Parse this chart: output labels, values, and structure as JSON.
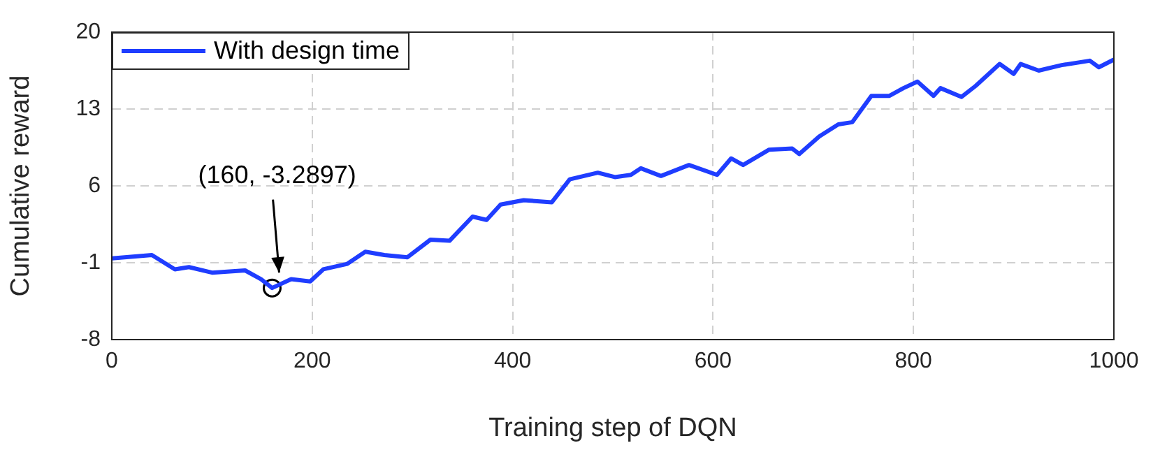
{
  "chart_data": {
    "type": "line",
    "xlabel": "Training step of DQN",
    "ylabel": "Cumulative reward",
    "x": [
      0,
      40,
      63,
      77,
      100,
      133,
      149,
      160,
      179,
      198,
      211,
      235,
      253,
      272,
      295,
      318,
      337,
      360,
      374,
      388,
      411,
      439,
      457,
      485,
      502,
      518,
      528,
      548,
      576,
      604,
      618,
      630,
      656,
      679,
      686,
      706,
      725,
      739,
      758,
      776,
      790,
      804,
      820,
      827,
      848,
      862,
      886,
      900,
      907,
      925,
      948,
      976,
      985,
      1000
    ],
    "series": [
      {
        "name": "With design time",
        "color": "#1f3dff",
        "values": [
          -0.6,
          -0.3,
          -1.6,
          -1.4,
          -1.9,
          -1.7,
          -2.5,
          -3.3,
          -2.5,
          -2.7,
          -1.6,
          -1.1,
          0.0,
          -0.3,
          -0.5,
          1.1,
          1.0,
          3.2,
          2.9,
          4.3,
          4.7,
          4.5,
          6.6,
          7.2,
          6.8,
          7.0,
          7.6,
          6.9,
          7.9,
          7.0,
          8.5,
          7.9,
          9.3,
          9.4,
          8.9,
          10.5,
          11.6,
          11.8,
          14.2,
          14.2,
          14.9,
          15.5,
          14.2,
          14.9,
          14.1,
          15.1,
          17.1,
          16.2,
          17.1,
          16.5,
          17.0,
          17.4,
          16.8,
          17.5
        ]
      },
      {
        "type": "scatter",
        "x": [
          160
        ],
        "color": "#000000",
        "marker": "circle",
        "values": [
          -3.3
        ]
      }
    ],
    "annotations": [
      "(160, -3.2897)"
    ],
    "xlim": [
      0,
      1000
    ],
    "xticks": [
      0,
      200,
      400,
      600,
      800,
      1000
    ],
    "ylim": [
      -8,
      20
    ],
    "yticks": [
      -8,
      -1,
      6,
      13,
      20
    ],
    "grid": true,
    "legend": "top left",
    "marker": "none",
    "line_style": "solid"
  }
}
